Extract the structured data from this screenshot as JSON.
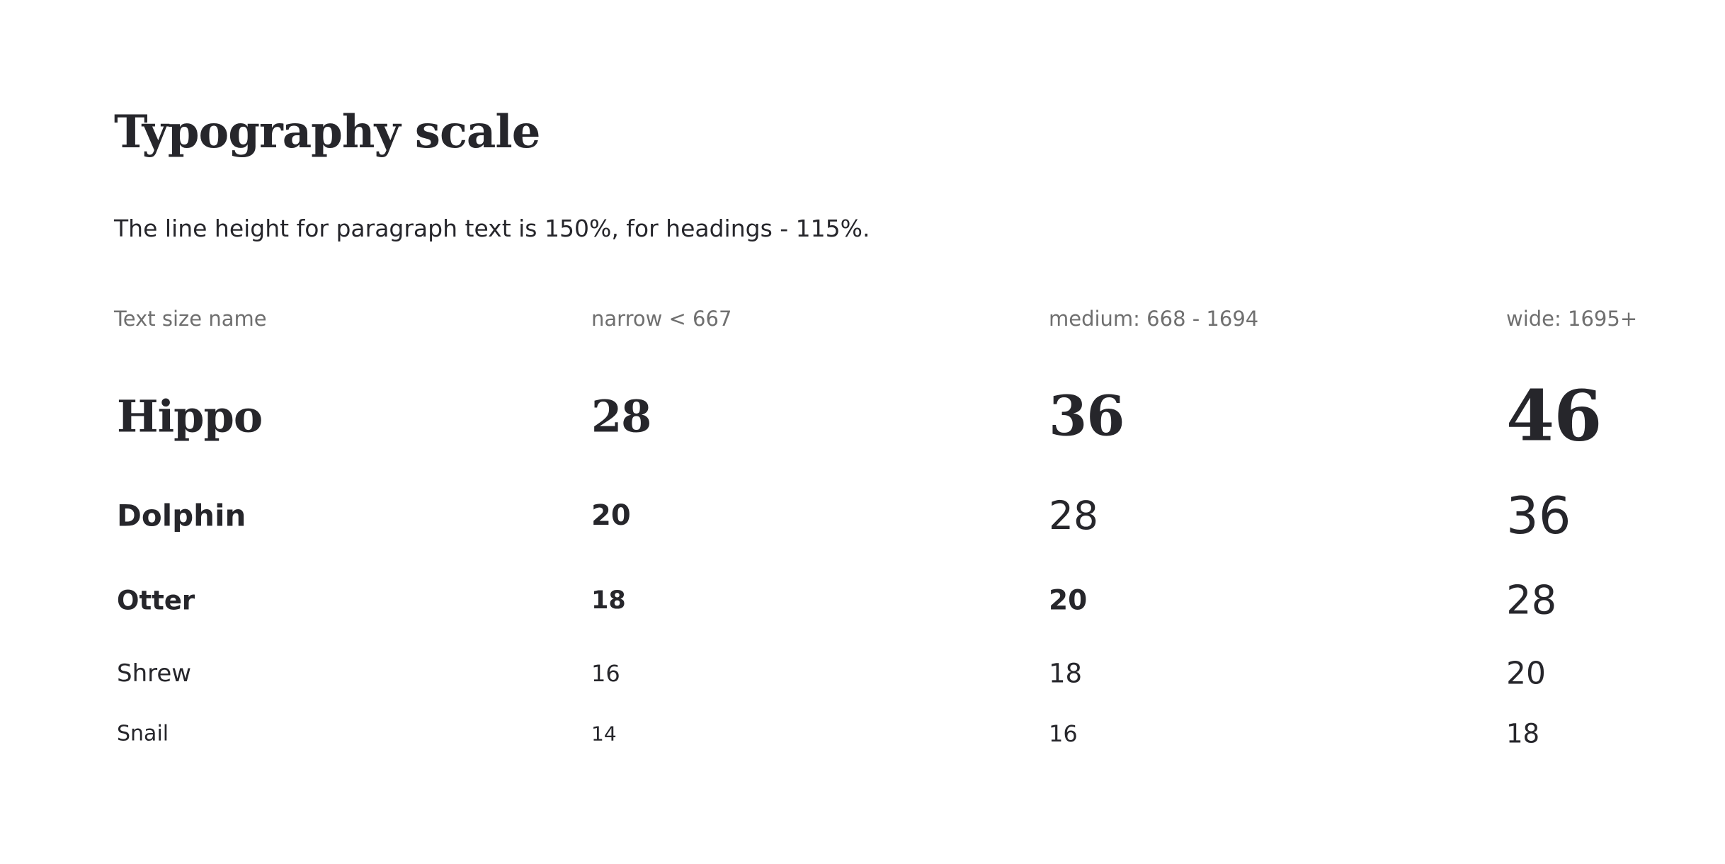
{
  "page": {
    "title": "Typography scale",
    "intro": "The line height for paragraph text is 150%, for headings - 115%."
  },
  "table": {
    "headers": [
      "Text size name",
      "narrow < 667",
      "medium: 668 - 1694",
      "wide: 1695+"
    ],
    "rows": [
      {
        "name": "Hippo",
        "narrow": "28",
        "medium": "36",
        "wide": "46"
      },
      {
        "name": "Dolphin",
        "narrow": "20",
        "medium": "28",
        "wide": "36"
      },
      {
        "name": "Otter",
        "narrow": "18",
        "medium": "20",
        "wide": "28"
      },
      {
        "name": "Shrew",
        "narrow": "16",
        "medium": "18",
        "wide": "20"
      },
      {
        "name": "Snail",
        "narrow": "14",
        "medium": "16",
        "wide": "18"
      }
    ]
  },
  "colors": {
    "text": "#26262b",
    "muted": "#6f6f6f",
    "background": "#ffffff"
  }
}
